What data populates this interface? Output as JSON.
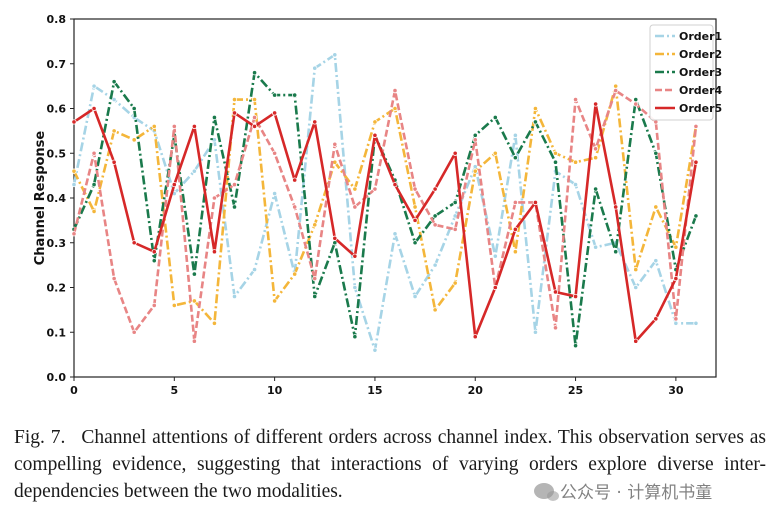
{
  "chart_data": {
    "type": "line",
    "title": "",
    "xlabel": "",
    "ylabel": "Channel Response",
    "xlim": [
      0,
      32
    ],
    "ylim": [
      0,
      0.8
    ],
    "x_ticks": [
      0,
      5,
      10,
      15,
      20,
      25,
      30
    ],
    "y_ticks": [
      0.0,
      0.1,
      0.2,
      0.3,
      0.4,
      0.5,
      0.6,
      0.7,
      0.8
    ],
    "grid": false,
    "legend_position": "top-right",
    "x": [
      0,
      1,
      2,
      3,
      4,
      5,
      6,
      7,
      8,
      9,
      10,
      11,
      12,
      13,
      14,
      15,
      16,
      17,
      18,
      19,
      20,
      21,
      22,
      23,
      24,
      25,
      26,
      27,
      28,
      29,
      30,
      31
    ],
    "series": [
      {
        "name": "Order1",
        "color": "#a6d4e6",
        "linestyle": "dashdot",
        "values": [
          0.43,
          0.65,
          0.62,
          0.58,
          0.55,
          0.41,
          0.46,
          0.53,
          0.18,
          0.24,
          0.41,
          0.23,
          0.69,
          0.72,
          0.2,
          0.06,
          0.32,
          0.18,
          0.25,
          0.36,
          0.47,
          0.27,
          0.54,
          0.1,
          0.46,
          0.43,
          0.29,
          0.3,
          0.2,
          0.26,
          0.12,
          0.12
        ]
      },
      {
        "name": "Order2",
        "color": "#f4b63a",
        "linestyle": "dashdot",
        "values": [
          0.46,
          0.37,
          0.55,
          0.53,
          0.56,
          0.16,
          0.17,
          0.12,
          0.62,
          0.62,
          0.17,
          0.23,
          0.34,
          0.48,
          0.42,
          0.57,
          0.6,
          0.38,
          0.15,
          0.21,
          0.46,
          0.5,
          0.28,
          0.6,
          0.5,
          0.48,
          0.49,
          0.65,
          0.24,
          0.38,
          0.29,
          0.56
        ]
      },
      {
        "name": "Order3",
        "color": "#1a7a4c",
        "linestyle": "dashdot",
        "values": [
          0.33,
          0.43,
          0.66,
          0.6,
          0.26,
          0.54,
          0.23,
          0.58,
          0.38,
          0.68,
          0.63,
          0.63,
          0.18,
          0.3,
          0.09,
          0.54,
          0.44,
          0.3,
          0.36,
          0.39,
          0.54,
          0.58,
          0.49,
          0.57,
          0.48,
          0.07,
          0.42,
          0.28,
          0.62,
          0.5,
          0.24,
          0.36
        ]
      },
      {
        "name": "Order4",
        "color": "#e88585",
        "linestyle": "dashed",
        "values": [
          0.32,
          0.5,
          0.22,
          0.1,
          0.16,
          0.56,
          0.08,
          0.4,
          0.43,
          0.58,
          0.5,
          0.38,
          0.22,
          0.52,
          0.38,
          0.42,
          0.64,
          0.42,
          0.34,
          0.33,
          0.53,
          0.2,
          0.39,
          0.39,
          0.11,
          0.62,
          0.51,
          0.64,
          0.61,
          0.57,
          0.13,
          0.56
        ]
      },
      {
        "name": "Order5",
        "color": "#d62828",
        "linestyle": "solid",
        "values": [
          0.57,
          0.6,
          0.48,
          0.3,
          0.28,
          0.43,
          0.56,
          0.28,
          0.59,
          0.56,
          0.59,
          0.44,
          0.57,
          0.31,
          0.27,
          0.54,
          0.43,
          0.35,
          0.42,
          0.5,
          0.09,
          0.2,
          0.33,
          0.39,
          0.19,
          0.18,
          0.61,
          0.38,
          0.08,
          0.13,
          0.22,
          0.48
        ]
      }
    ]
  },
  "caption": {
    "label": "Fig. 7.",
    "text": "Channel attentions of different orders across channel index. This observation serves as compelling evidence, suggesting that interactions of varying orders explore diverse inter-dependencies between the two modalities."
  },
  "watermark": {
    "text": "公众号 · 计算机书童",
    "icon": "wechat-icon"
  }
}
